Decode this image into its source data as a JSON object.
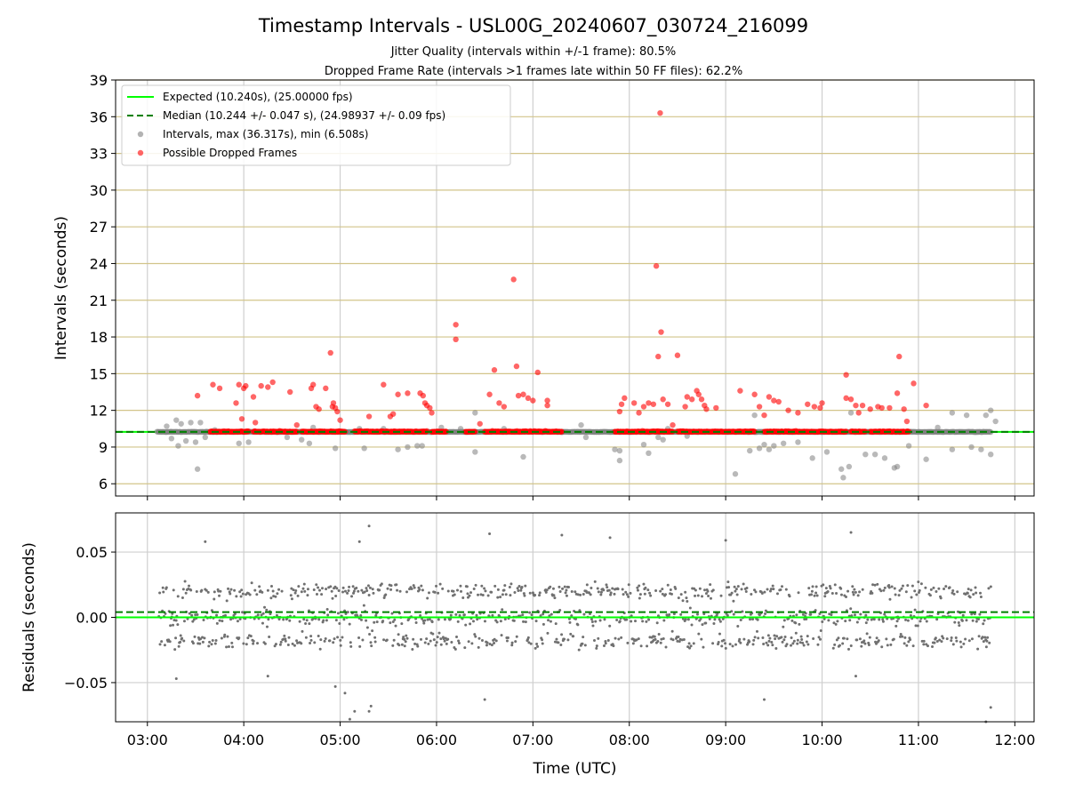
{
  "figure": {
    "title": "Timestamp Intervals - USL00G_20240607_030724_216099",
    "subtitle_1": "Jitter Quality (intervals within +/-1 frame): 80.5%",
    "subtitle_2": "Dropped Frame Rate (intervals >1 frames late within 50 FF files): 62.2%"
  },
  "chart_data": [
    {
      "type": "scatter",
      "panel": "top",
      "xlabel": "",
      "ylabel": "Intervals (seconds)",
      "xlim": [
        2.67,
        12.2
      ],
      "ylim": [
        5,
        39
      ],
      "yticks": [
        6,
        9,
        12,
        15,
        18,
        21,
        24,
        27,
        30,
        33,
        36,
        39
      ],
      "ytick_labels": [
        "6",
        "9",
        "12",
        "15",
        "18",
        "21",
        "24",
        "27",
        "30",
        "33",
        "36",
        "39"
      ],
      "xticks": [
        3,
        4,
        5,
        6,
        7,
        8,
        9,
        10,
        11,
        12
      ],
      "xtick_labels": [
        "03:00",
        "04:00",
        "05:00",
        "06:00",
        "07:00",
        "08:00",
        "09:00",
        "10:00",
        "11:00",
        "12:00"
      ],
      "grid_x": true,
      "grid_y_color": "#d2c48a",
      "legend_position": "top-left",
      "legend": [
        {
          "label": "Expected (10.240s), (25.00000 fps)",
          "marker": "solid-line",
          "color": "#00ff00"
        },
        {
          "label": "Median (10.244 +/- 0.047 s), (24.98937 +/- 0.09 fps)",
          "marker": "dashed-line",
          "color": "#008000"
        },
        {
          "label": "Intervals, max (36.317s), min (6.508s)",
          "marker": "dot",
          "color": "#808080"
        },
        {
          "label": "Possible Dropped Frames",
          "marker": "dot",
          "color": "#ff0000"
        }
      ],
      "expected_line": 10.24,
      "median_line": 10.244,
      "baseline_band": {
        "x_start": 3.1,
        "x_end": 11.75,
        "y": 10.24
      },
      "series": [
        {
          "name": "Intervals, max (36.317s), min (6.508s)",
          "color": "#808080",
          "points": [
            [
              3.2,
              10.7
            ],
            [
              3.25,
              9.7
            ],
            [
              3.3,
              11.2
            ],
            [
              3.32,
              9.1
            ],
            [
              3.35,
              10.9
            ],
            [
              3.4,
              9.5
            ],
            [
              3.45,
              11.0
            ],
            [
              3.5,
              9.4
            ],
            [
              3.52,
              7.2
            ],
            [
              3.55,
              11.0
            ],
            [
              3.6,
              9.8
            ],
            [
              3.7,
              10.4
            ],
            [
              3.95,
              9.3
            ],
            [
              4.05,
              9.4
            ],
            [
              4.45,
              9.8
            ],
            [
              4.6,
              9.6
            ],
            [
              4.68,
              9.3
            ],
            [
              4.72,
              10.6
            ],
            [
              4.95,
              8.9
            ],
            [
              5.2,
              10.5
            ],
            [
              5.25,
              8.9
            ],
            [
              5.45,
              10.5
            ],
            [
              5.6,
              8.8
            ],
            [
              5.7,
              9.0
            ],
            [
              5.8,
              9.1
            ],
            [
              5.85,
              9.1
            ],
            [
              6.05,
              10.6
            ],
            [
              6.25,
              10.5
            ],
            [
              6.4,
              8.6
            ],
            [
              6.4,
              11.8
            ],
            [
              6.9,
              8.2
            ],
            [
              7.3,
              10.2
            ],
            [
              7.5,
              10.8
            ],
            [
              7.55,
              9.8
            ],
            [
              7.85,
              8.8
            ],
            [
              7.9,
              7.9
            ],
            [
              7.9,
              8.7
            ],
            [
              8.15,
              9.2
            ],
            [
              8.2,
              8.5
            ],
            [
              8.3,
              9.8
            ],
            [
              8.35,
              9.6
            ],
            [
              8.4,
              10.5
            ],
            [
              8.6,
              9.9
            ],
            [
              9.1,
              6.8
            ],
            [
              9.25,
              8.7
            ],
            [
              9.3,
              11.6
            ],
            [
              9.35,
              8.9
            ],
            [
              9.4,
              9.2
            ],
            [
              9.45,
              8.8
            ],
            [
              9.5,
              9.1
            ],
            [
              9.6,
              9.3
            ],
            [
              9.75,
              9.4
            ],
            [
              9.9,
              8.1
            ],
            [
              10.05,
              8.6
            ],
            [
              10.2,
              7.2
            ],
            [
              10.22,
              6.5
            ],
            [
              10.28,
              7.4
            ],
            [
              10.3,
              11.8
            ],
            [
              10.45,
              8.4
            ],
            [
              10.55,
              8.4
            ],
            [
              10.65,
              8.1
            ],
            [
              10.75,
              7.3
            ],
            [
              10.78,
              7.4
            ],
            [
              10.9,
              9.1
            ],
            [
              11.08,
              8.0
            ],
            [
              11.35,
              8.8
            ],
            [
              11.35,
              11.8
            ],
            [
              11.5,
              11.6
            ],
            [
              11.55,
              9.0
            ],
            [
              11.65,
              8.8
            ],
            [
              11.7,
              11.6
            ],
            [
              11.75,
              12.0
            ],
            [
              11.75,
              8.4
            ],
            [
              11.8,
              11.1
            ],
            [
              11.2,
              10.6
            ],
            [
              6.7,
              10.5
            ]
          ]
        },
        {
          "name": "Possible Dropped Frames",
          "color": "#ff0000",
          "points": [
            [
              3.52,
              13.2
            ],
            [
              3.68,
              14.1
            ],
            [
              3.75,
              13.8
            ],
            [
              3.92,
              12.6
            ],
            [
              3.95,
              14.1
            ],
            [
              3.98,
              11.3
            ],
            [
              4.0,
              13.8
            ],
            [
              4.02,
              14.0
            ],
            [
              4.1,
              13.1
            ],
            [
              4.12,
              11.0
            ],
            [
              4.18,
              14.0
            ],
            [
              4.25,
              13.9
            ],
            [
              4.3,
              14.3
            ],
            [
              4.48,
              13.5
            ],
            [
              4.55,
              10.8
            ],
            [
              4.7,
              13.8
            ],
            [
              4.72,
              14.1
            ],
            [
              4.75,
              12.3
            ],
            [
              4.78,
              12.1
            ],
            [
              4.85,
              13.8
            ],
            [
              4.9,
              16.7
            ],
            [
              4.92,
              12.3
            ],
            [
              4.93,
              12.6
            ],
            [
              4.95,
              12.2
            ],
            [
              4.97,
              11.9
            ],
            [
              5.0,
              11.2
            ],
            [
              5.3,
              11.5
            ],
            [
              5.45,
              14.1
            ],
            [
              5.52,
              11.5
            ],
            [
              5.55,
              11.7
            ],
            [
              5.6,
              13.3
            ],
            [
              5.7,
              13.4
            ],
            [
              5.83,
              13.4
            ],
            [
              5.86,
              13.2
            ],
            [
              5.88,
              12.6
            ],
            [
              5.9,
              12.4
            ],
            [
              5.93,
              12.2
            ],
            [
              5.95,
              11.8
            ],
            [
              6.2,
              19.0
            ],
            [
              6.2,
              17.8
            ],
            [
              6.55,
              13.3
            ],
            [
              6.6,
              15.3
            ],
            [
              6.65,
              12.6
            ],
            [
              6.7,
              12.3
            ],
            [
              6.8,
              22.7
            ],
            [
              6.83,
              15.6
            ],
            [
              6.85,
              13.2
            ],
            [
              6.9,
              13.3
            ],
            [
              6.95,
              13.0
            ],
            [
              7.0,
              12.8
            ],
            [
              7.05,
              15.1
            ],
            [
              7.15,
              12.8
            ],
            [
              7.15,
              12.4
            ],
            [
              7.9,
              11.9
            ],
            [
              7.92,
              12.5
            ],
            [
              7.95,
              13.0
            ],
            [
              8.05,
              12.6
            ],
            [
              8.1,
              11.8
            ],
            [
              8.15,
              12.3
            ],
            [
              8.2,
              12.6
            ],
            [
              8.25,
              12.5
            ],
            [
              8.28,
              23.8
            ],
            [
              8.3,
              16.4
            ],
            [
              8.32,
              36.3
            ],
            [
              8.33,
              18.4
            ],
            [
              8.35,
              12.9
            ],
            [
              8.4,
              12.5
            ],
            [
              8.5,
              16.5
            ],
            [
              8.58,
              12.3
            ],
            [
              8.6,
              13.1
            ],
            [
              8.65,
              12.9
            ],
            [
              8.7,
              13.6
            ],
            [
              8.72,
              13.3
            ],
            [
              8.75,
              12.9
            ],
            [
              8.78,
              12.4
            ],
            [
              8.8,
              12.1
            ],
            [
              8.9,
              12.2
            ],
            [
              9.15,
              13.6
            ],
            [
              9.3,
              13.3
            ],
            [
              9.35,
              12.3
            ],
            [
              9.4,
              11.6
            ],
            [
              9.45,
              13.1
            ],
            [
              9.5,
              12.8
            ],
            [
              9.55,
              12.7
            ],
            [
              9.65,
              12.0
            ],
            [
              9.75,
              11.8
            ],
            [
              9.85,
              12.5
            ],
            [
              9.92,
              12.3
            ],
            [
              9.98,
              12.2
            ],
            [
              10.0,
              12.6
            ],
            [
              10.25,
              14.9
            ],
            [
              10.3,
              12.9
            ],
            [
              10.35,
              12.4
            ],
            [
              10.38,
              11.8
            ],
            [
              10.42,
              12.4
            ],
            [
              10.5,
              12.1
            ],
            [
              10.58,
              12.3
            ],
            [
              10.62,
              12.2
            ],
            [
              10.7,
              12.2
            ],
            [
              10.78,
              13.4
            ],
            [
              10.8,
              16.4
            ],
            [
              10.85,
              12.1
            ],
            [
              10.88,
              11.1
            ],
            [
              10.95,
              14.2
            ],
            [
              11.08,
              12.4
            ],
            [
              10.25,
              13.0
            ],
            [
              6.45,
              10.9
            ],
            [
              8.45,
              10.8
            ]
          ]
        }
      ]
    },
    {
      "type": "scatter",
      "panel": "bottom",
      "xlabel": "Time (UTC)",
      "ylabel": "Residuals (seconds)",
      "xlim": [
        2.67,
        12.2
      ],
      "ylim": [
        -0.08,
        0.08
      ],
      "yticks": [
        -0.05,
        0.0,
        0.05
      ],
      "ytick_labels": [
        "−0.05",
        "0.00",
        "0.05"
      ],
      "xticks": [
        3,
        4,
        5,
        6,
        7,
        8,
        9,
        10,
        11,
        12
      ],
      "xtick_labels": [
        "03:00",
        "04:00",
        "05:00",
        "06:00",
        "07:00",
        "08:00",
        "09:00",
        "10:00",
        "11:00",
        "12:00"
      ],
      "grid_x": true,
      "grid_y": true,
      "expected_line": 0.0,
      "median_line": 0.004,
      "series": [
        {
          "name": "Residuals",
          "color": "#707070",
          "distribution": {
            "x_start": 3.12,
            "x_end": 11.75,
            "count": 1300,
            "center": 0.0,
            "bands": [
              0.02,
              0.0,
              -0.018
            ],
            "spread": 0.035
          },
          "outliers": [
            [
              3.3,
              -0.047
            ],
            [
              3.6,
              0.058
            ],
            [
              4.25,
              -0.045
            ],
            [
              4.95,
              -0.053
            ],
            [
              5.05,
              -0.058
            ],
            [
              5.1,
              -0.078
            ],
            [
              5.15,
              -0.072
            ],
            [
              5.2,
              0.058
            ],
            [
              5.3,
              -0.072
            ],
            [
              5.32,
              -0.068
            ],
            [
              5.3,
              0.07
            ],
            [
              6.5,
              -0.063
            ],
            [
              6.55,
              0.064
            ],
            [
              7.3,
              0.063
            ],
            [
              7.8,
              0.061
            ],
            [
              9.0,
              0.059
            ],
            [
              9.4,
              -0.063
            ],
            [
              10.3,
              0.065
            ],
            [
              10.35,
              -0.045
            ],
            [
              11.75,
              -0.069
            ],
            [
              11.7,
              -0.08
            ]
          ]
        }
      ]
    }
  ]
}
